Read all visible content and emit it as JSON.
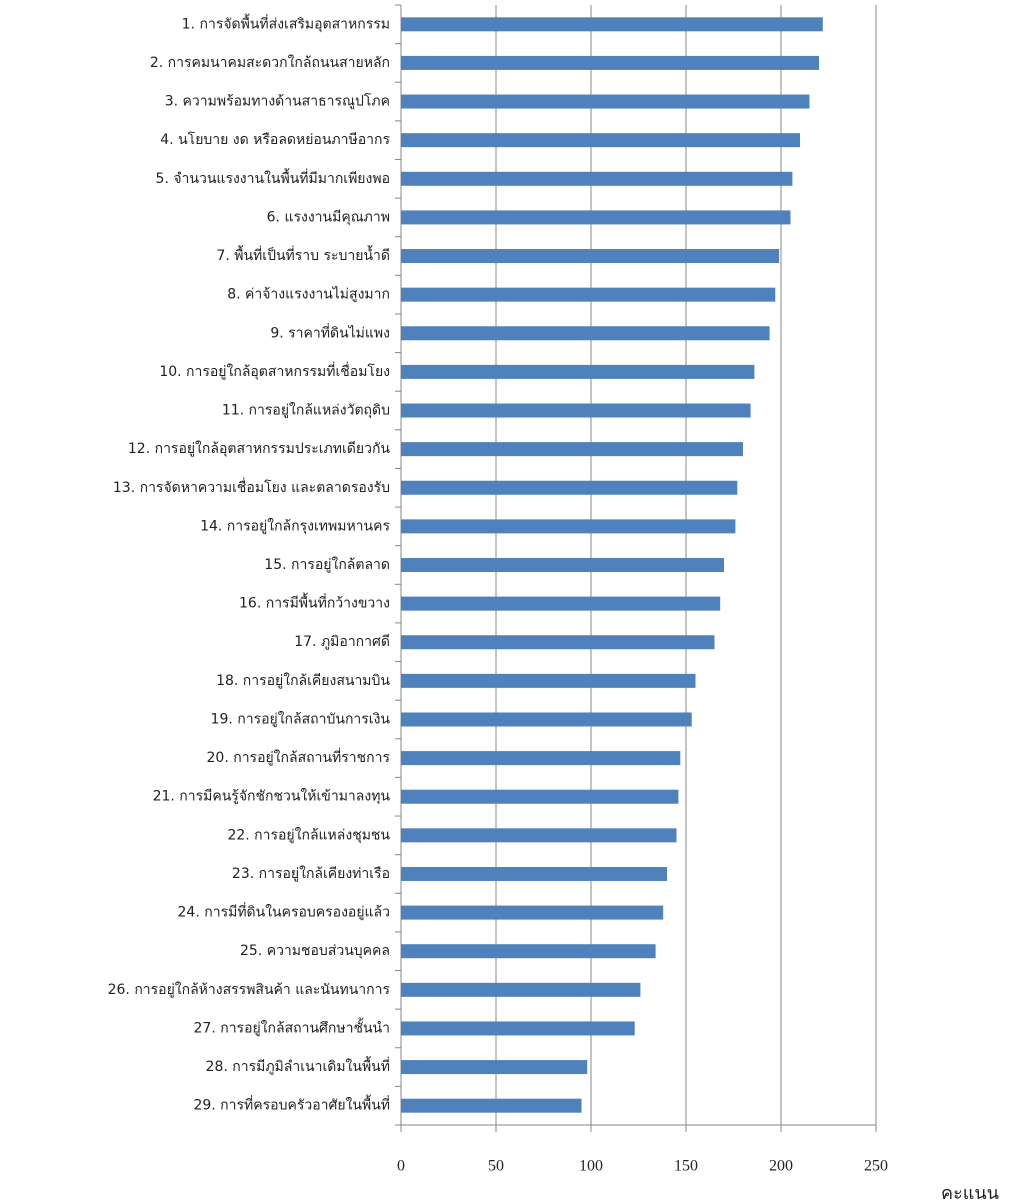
{
  "chart_data": {
    "type": "hbar",
    "x_label": "คะแนน",
    "categories": [
      "1. การจัดพื้นที่ส่งเสริมอุตสาหกรรม",
      "2. การคมนาคมสะดวกใกล้ถนนสายหลัก",
      "3. ความพร้อมทางด้านสาธารณูปโภค",
      "4. นโยบาย งด หรือลดหย่อนภาษีอากร",
      "5. จำนวนแรงงานในพื้นที่มีมากเพียงพอ",
      "6. แรงงานมีคุณภาพ",
      "7. พื้นที่เป็นที่ราบ ระบายน้ำดี",
      "8. ค่าจ้างแรงงานไม่สูงมาก",
      "9. ราคาที่ดินไม่แพง",
      "10. การอยู่ใกล้อุตสาหกรรมที่เชื่อมโยง",
      "11. การอยู่ใกล้แหล่งวัตถุดิบ",
      "12. การอยู่ใกล้อุตสาหกรรมประเภทเดียวกัน",
      "13. การจัดหาความเชื่อมโยง และตลาดรองรับ",
      "14. การอยู่ใกล้กรุงเทพมหานคร",
      "15. การอยู่ใกล้ตลาด",
      "16. การมีพื้นที่กว้างขวาง",
      "17. ภูมิอากาศดี",
      "18. การอยู่ใกล้เคียงสนามบิน",
      "19. การอยู่ใกล้สถาบันการเงิน",
      "20. การอยู่ใกล้สถานที่ราชการ",
      "21. การมีคนรู้จักชักชวนให้เข้ามาลงทุน",
      "22. การอยู่ใกล้แหล่งชุมชน",
      "23. การอยู่ใกล้เคียงท่าเรือ",
      "24. การมีที่ดินในครอบครองอยู่แล้ว",
      "25. ความชอบส่วนบุคคล",
      "26. การอยู่ใกล้ห้างสรรพสินค้า และนันทนาการ",
      "27. การอยู่ใกล้สถานศึกษาชั้นนำ",
      "28. การมีภูมิลำเนาเดิมในพื้นที่",
      "29. การที่ครอบครัวอาศัยในพื้นที่"
    ],
    "values": [
      222,
      220,
      215,
      210,
      206,
      205,
      199,
      197,
      194,
      186,
      184,
      180,
      177,
      176,
      170,
      168,
      165,
      155,
      153,
      147,
      146,
      145,
      140,
      138,
      134,
      126,
      123,
      98,
      95
    ],
    "color": "#4f81bd",
    "xlim": [
      0,
      250
    ],
    "xticks": [
      0,
      50,
      100,
      150,
      200,
      250
    ],
    "grid": true
  }
}
